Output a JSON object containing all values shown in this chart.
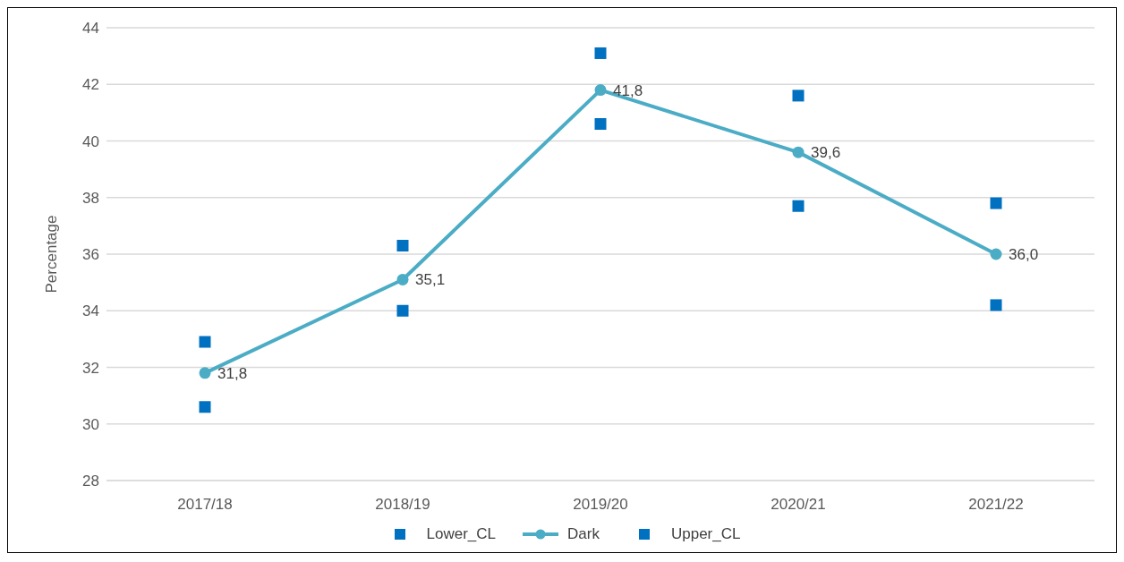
{
  "chart_data": {
    "type": "line",
    "ylabel": "Percentage",
    "categories": [
      "2017/18",
      "2018/19",
      "2019/20",
      "2020/21",
      "2021/22"
    ],
    "series": [
      {
        "name": "Lower_CL",
        "type": "scatter",
        "marker": "square",
        "color": "#0070c0",
        "values": [
          32.9,
          36.3,
          43.1,
          41.6,
          37.8
        ]
      },
      {
        "name": "Dark",
        "marker": "circle",
        "color": "#4bacc6",
        "values": [
          31.8,
          35.1,
          41.8,
          39.6,
          36.0
        ],
        "value_labels": [
          "31,8",
          "35,1",
          "41,8",
          "39,6",
          "36,0"
        ]
      },
      {
        "name": "Upper_CL",
        "type": "scatter",
        "marker": "square",
        "color": "#0070c0",
        "values": [
          30.6,
          34.0,
          40.6,
          37.7,
          34.2
        ]
      }
    ],
    "ylim": [
      28,
      44
    ],
    "yticks": [
      28,
      30,
      32,
      34,
      36,
      38,
      40,
      42,
      44
    ],
    "grid": "y",
    "legend": "bottom"
  }
}
